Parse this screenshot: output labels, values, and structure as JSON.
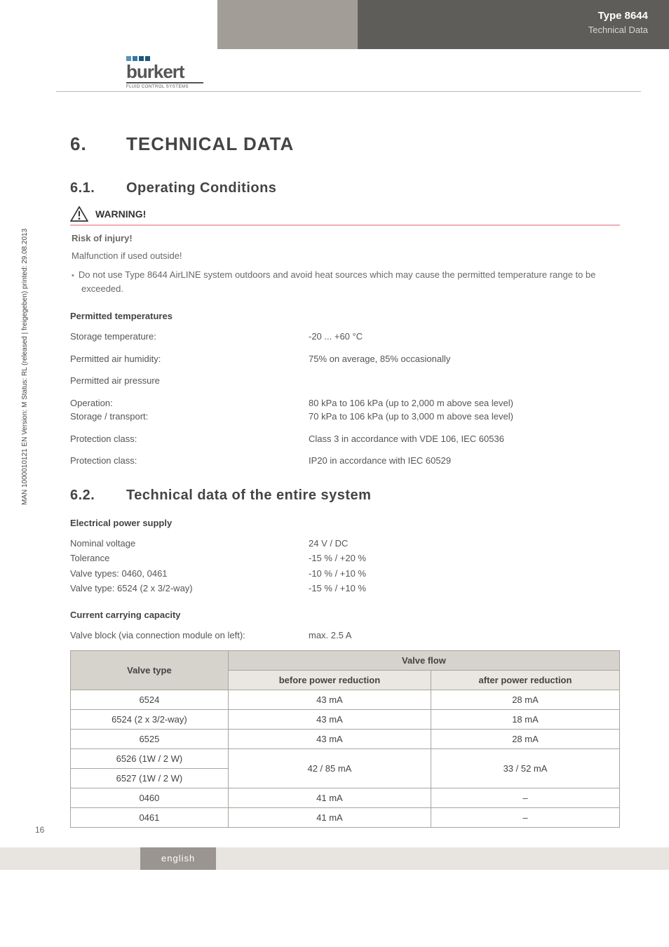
{
  "header": {
    "type_line": "Type 8644",
    "sub_line": "Technical Data",
    "logo_text": "burkert",
    "logo_tag": "FLUID CONTROL SYSTEMS"
  },
  "side_text": "MAN 1000010121 EN Version: M Status: RL (released | freigegeben) printed: 29.08.2013",
  "page_num": "16",
  "bottom_tab": "english",
  "section": {
    "num": "6.",
    "title": "TECHNICAL DATA"
  },
  "sub1": {
    "num": "6.1.",
    "title": "Operating Conditions"
  },
  "warning": {
    "label": "WARNING!",
    "risk_title": "Risk of injury!",
    "line1": "Malfunction if used outside!",
    "bullet1": "Do not use Type 8644 AirLINE system outdoors and avoid heat sources which may cause the permitted temperature range to be exceeded."
  },
  "perm_temp_title": "Permitted temperatures",
  "rows1": [
    {
      "k": "Storage temperature:",
      "v": "-20 ... +60 °C"
    },
    {
      "k": "Permitted air humidity:",
      "v": "75% on average, 85% occasionally"
    },
    {
      "k": "Permitted air pressure",
      "v": ""
    },
    {
      "k": "Operation:\nStorage / transport:",
      "v": "80 kPa to 106 kPa (up to 2,000 m above sea level)\n70 kPa to 106 kPa (up to 3,000 m above sea level)"
    },
    {
      "k": "Protection class:",
      "v": "Class 3 in accordance with VDE 106, IEC 60536"
    },
    {
      "k": "Protection class:",
      "v": "IP20 in accordance with IEC 60529"
    }
  ],
  "sub2": {
    "num": "6.2.",
    "title": "Technical data of the entire system"
  },
  "eps_title": "Electrical power supply",
  "rows2": [
    {
      "k": "Nominal voltage",
      "v": "24 V / DC"
    },
    {
      "k": "Tolerance",
      "v": "-15 % / +20 %"
    },
    {
      "k": "Valve types: 0460, 0461",
      "v": "-10 % / +10 %"
    },
    {
      "k": "Valve type: 6524 (2 x 3/2-way)",
      "v": "-15 % / +10 %"
    }
  ],
  "ccc_title": "Current carrying capacity",
  "ccc_row": {
    "k": "Valve block (via connection module on left):",
    "v": "max. 2.5 A"
  },
  "table": {
    "head_type": "Valve type",
    "head_flow": "Valve flow",
    "sub_before": "before power reduction",
    "sub_after": "after power reduction",
    "rows": [
      {
        "type": "6524",
        "before": "43 mA",
        "after": "28 mA",
        "merge": false
      },
      {
        "type": "6524 (2 x 3/2-way)",
        "before": "43 mA",
        "after": "18 mA",
        "merge": false
      },
      {
        "type": "6525",
        "before": "43 mA",
        "after": "28 mA",
        "merge": false
      },
      {
        "type": "6526 (1W / 2 W)",
        "before": "42 / 85 mA",
        "after": "33 / 52 mA",
        "merge": true
      },
      {
        "type": "6527 (1W / 2 W)",
        "before": "",
        "after": "",
        "merge": false
      },
      {
        "type": "0460",
        "before": "41 mA",
        "after": "–",
        "merge": false
      },
      {
        "type": "0461",
        "before": "41 mA",
        "after": "–",
        "merge": false
      }
    ],
    "colors": {
      "header_bg": "#d6d2cc",
      "subhead_bg": "#eae7e2",
      "border": "#a9a49e"
    }
  }
}
